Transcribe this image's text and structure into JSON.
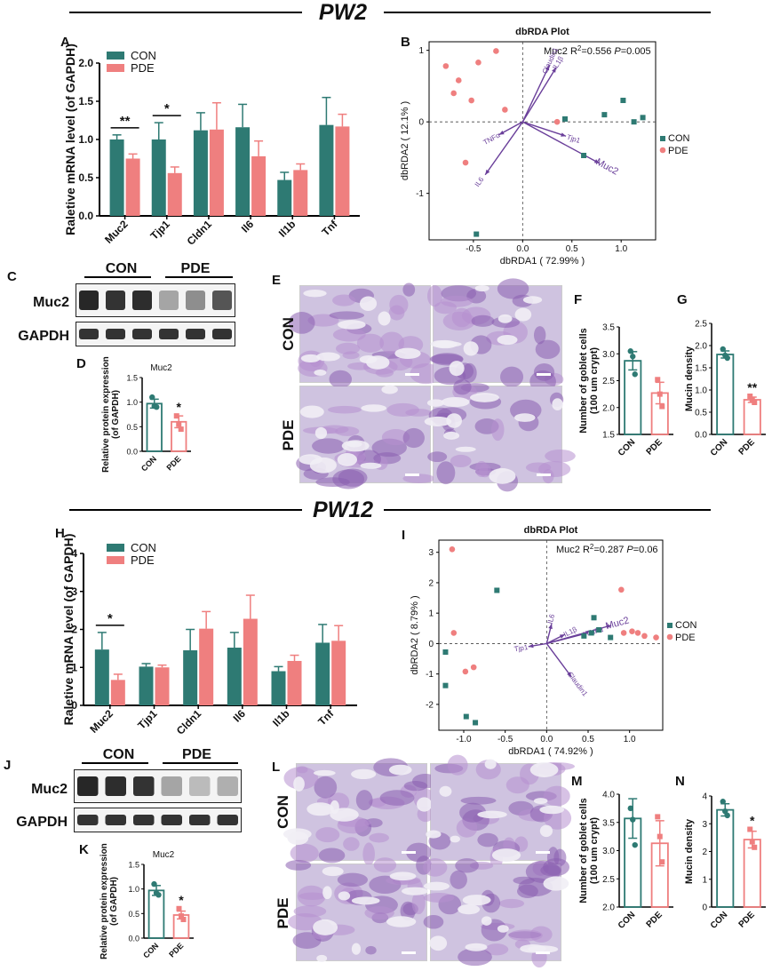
{
  "colors": {
    "con": "#2e7a73",
    "pde": "#ef7f7f",
    "vector": "#6a3f9a",
    "text": "#111111"
  },
  "sections": {
    "top": "PW2",
    "bottom": "PW12"
  },
  "panel_letters": [
    "A",
    "B",
    "C",
    "D",
    "E",
    "F",
    "G",
    "H",
    "I",
    "J",
    "K",
    "L",
    "M",
    "N"
  ],
  "group_labels": {
    "con": "CON",
    "pde": "PDE"
  },
  "blot_labels": {
    "muc2": "Muc2",
    "gapdh": "GAPDH"
  },
  "histology_row_labels": [
    "CON",
    "PDE"
  ],
  "chart_data": [
    {
      "id": "A",
      "type": "bar",
      "ylabel": "Raletive mRNA level (of GAPDH)",
      "categories": [
        "Muc2",
        "Tjp1",
        "Cldn1",
        "Il6",
        "Il1b",
        "Tnf"
      ],
      "ylim": [
        0,
        2.0
      ],
      "yticks": [
        "0.0",
        "0.5",
        "1.0",
        "1.5",
        "2.0"
      ],
      "series": [
        {
          "name": "CON",
          "values": [
            1.0,
            1.0,
            1.12,
            1.16,
            0.47,
            1.19
          ],
          "errors": [
            0.06,
            0.22,
            0.23,
            0.3,
            0.1,
            0.36
          ]
        },
        {
          "name": "PDE",
          "values": [
            0.75,
            0.56,
            1.13,
            0.78,
            0.6,
            1.17
          ],
          "errors": [
            0.06,
            0.08,
            0.35,
            0.2,
            0.08,
            0.16
          ]
        }
      ],
      "annotations": [
        {
          "category": "Muc2",
          "text": "**"
        },
        {
          "category": "Tjp1",
          "text": "*"
        }
      ]
    },
    {
      "id": "B",
      "type": "scatter",
      "title": "dbRDA Plot",
      "xlabel": "dbRDA1 ( 72.99% )",
      "ylabel": "dbRDA2 ( 12.1% )",
      "xlim": [
        -0.95,
        1.35
      ],
      "ylim": [
        -1.65,
        1.12
      ],
      "xticks": [
        "-0.5",
        "0.0",
        "0.5",
        "1.0"
      ],
      "xtick_values": [
        -0.5,
        0,
        0.5,
        1.0
      ],
      "yticks": [
        "1",
        "0",
        "-1"
      ],
      "ytick_values": [
        1,
        0,
        -1
      ],
      "stat": {
        "prefix": "Muc2 R",
        "sup": "2",
        "mid": "=0.556 ",
        "p": "P",
        "tail": "=0.005"
      },
      "series": [
        {
          "name": "CON",
          "x": [
            0.43,
            0.62,
            0.83,
            1.02,
            1.13,
            1.22,
            -0.47
          ],
          "y": [
            0.04,
            -0.47,
            0.1,
            0.3,
            0.0,
            0.06,
            -1.57
          ]
        },
        {
          "name": "PDE",
          "x": [
            -0.78,
            -0.65,
            -0.7,
            -0.52,
            -0.45,
            -0.27,
            -0.18,
            0.35,
            -0.58
          ],
          "y": [
            0.78,
            0.58,
            0.4,
            0.3,
            0.83,
            0.99,
            0.17,
            0.0,
            -0.57
          ]
        }
      ],
      "vectors": [
        {
          "label": "Muc2",
          "x": 0.78,
          "y": -0.58
        },
        {
          "label": "Claudin1",
          "x": 0.27,
          "y": 0.79
        },
        {
          "label": "IL1β",
          "x": 0.34,
          "y": 0.76
        },
        {
          "label": "Tjp1",
          "x": 0.44,
          "y": -0.2
        },
        {
          "label": "TNFα",
          "x": -0.24,
          "y": -0.18
        },
        {
          "label": "IL6",
          "x": -0.38,
          "y": -0.74
        }
      ]
    },
    {
      "id": "D",
      "type": "bar",
      "title": "Muc2",
      "ylabel": "Relative protein expression (of GAPDH)",
      "categories": [
        "CON",
        "PDE"
      ],
      "ylim": [
        0,
        1.5
      ],
      "yticks": [
        "0.0",
        "0.5",
        "1.0",
        "1.5"
      ],
      "values": [
        0.97,
        0.6
      ],
      "errors": [
        0.09,
        0.12
      ],
      "points": [
        [
          1.1,
          0.92,
          0.9
        ],
        [
          0.72,
          0.55,
          0.45
        ]
      ],
      "annotations": [
        {
          "category": "PDE",
          "text": "*"
        }
      ]
    },
    {
      "id": "F",
      "type": "bar",
      "ylabel": "Number of goblet cells (100 um crypt)",
      "categories": [
        "CON",
        "PDE"
      ],
      "ylim": [
        1.5,
        3.5
      ],
      "yticks": [
        "1.5",
        "2.0",
        "2.5",
        "3.0",
        "3.5"
      ],
      "values": [
        2.87,
        2.27
      ],
      "errors": [
        0.17,
        0.2
      ],
      "points": [
        [
          3.05,
          2.95,
          2.62
        ],
        [
          2.52,
          2.25,
          2.02
        ]
      ]
    },
    {
      "id": "G",
      "type": "bar",
      "ylabel": "Mucin density",
      "categories": [
        "CON",
        "PDE"
      ],
      "ylim": [
        0,
        2.5
      ],
      "yticks": [
        "0.0",
        "0.5",
        "1.0",
        "1.5",
        "2.0",
        "2.5"
      ],
      "values": [
        1.8,
        0.78
      ],
      "errors": [
        0.08,
        0.06
      ],
      "points": [
        [
          1.92,
          1.78,
          1.72
        ],
        [
          0.86,
          0.77,
          0.72
        ]
      ],
      "annotations": [
        {
          "category": "PDE",
          "text": "**"
        }
      ]
    },
    {
      "id": "H",
      "type": "bar",
      "ylabel": "Raletive mRNA level (of GAPDH)",
      "categories": [
        "Muc2",
        "Tjp1",
        "Cldn1",
        "Il6",
        "Il1b",
        "Tnf"
      ],
      "ylim": [
        0,
        4
      ],
      "yticks": [
        "0",
        "1",
        "2",
        "3",
        "4"
      ],
      "series": [
        {
          "name": "CON",
          "values": [
            1.47,
            1.02,
            1.45,
            1.52,
            0.9,
            1.65
          ],
          "errors": [
            0.45,
            0.08,
            0.55,
            0.4,
            0.12,
            0.48
          ]
        },
        {
          "name": "PDE",
          "values": [
            0.67,
            1.0,
            2.02,
            2.28,
            1.17,
            1.7
          ],
          "errors": [
            0.15,
            0.06,
            0.45,
            0.62,
            0.15,
            0.4
          ]
        }
      ],
      "annotations": [
        {
          "category": "Muc2",
          "text": "*"
        }
      ]
    },
    {
      "id": "I",
      "type": "scatter",
      "title": "dbRDA Plot",
      "xlabel": "dbRDA1 ( 74.92% )",
      "ylabel": "dbRDA2 ( 8.79% )",
      "xlim": [
        -1.3,
        1.4
      ],
      "ylim": [
        -2.85,
        3.4
      ],
      "xticks": [
        "-1.0",
        "-0.5",
        "0.0",
        "0.5",
        "1.0"
      ],
      "xtick_values": [
        -1.0,
        -0.5,
        0,
        0.5,
        1.0
      ],
      "yticks": [
        "3",
        "2",
        "1",
        "0",
        "-1",
        "-2"
      ],
      "ytick_values": [
        3,
        2,
        1,
        0,
        -1,
        -2
      ],
      "stat": {
        "prefix": "Muc2 R",
        "sup": "2",
        "mid": "=0.287 ",
        "p": "P",
        "tail": "=0.06"
      },
      "series": [
        {
          "name": "CON",
          "x": [
            -0.6,
            -1.22,
            -1.22,
            -0.97,
            -0.86,
            0.57,
            0.45,
            0.54,
            0.63,
            0.77
          ],
          "y": [
            1.75,
            -0.28,
            -1.38,
            -2.4,
            -2.6,
            0.85,
            0.25,
            0.35,
            0.45,
            0.2
          ]
        },
        {
          "name": "PDE",
          "x": [
            -1.14,
            -1.12,
            -0.88,
            -0.98,
            0.9,
            0.93,
            1.03,
            1.1,
            1.18,
            1.32
          ],
          "y": [
            3.1,
            0.35,
            -0.78,
            -0.92,
            1.77,
            0.35,
            0.4,
            0.35,
            0.25,
            0.2
          ]
        }
      ],
      "vectors": [
        {
          "label": "Muc2",
          "x": 0.78,
          "y": 0.6
        },
        {
          "label": "Claudin1",
          "x": 0.3,
          "y": -1.1
        },
        {
          "label": "IL1β",
          "x": 0.22,
          "y": 0.3
        },
        {
          "label": "TNFα",
          "x": 0.5,
          "y": 0.35
        },
        {
          "label": "IL6",
          "x": 0.06,
          "y": 0.65
        },
        {
          "label": "Tjp1",
          "x": -0.22,
          "y": -0.1
        }
      ]
    },
    {
      "id": "K",
      "type": "bar",
      "title": "Muc2",
      "ylabel": "Relative protein expression (of GAPDH)",
      "categories": [
        "CON",
        "PDE"
      ],
      "ylim": [
        0,
        1.5
      ],
      "yticks": [
        "0.0",
        "0.5",
        "1.0",
        "1.5"
      ],
      "values": [
        0.97,
        0.47
      ],
      "errors": [
        0.1,
        0.08
      ],
      "points": [
        [
          1.1,
          0.92,
          0.88
        ],
        [
          0.6,
          0.45,
          0.38
        ]
      ],
      "annotations": [
        {
          "category": "PDE",
          "text": "*"
        }
      ]
    },
    {
      "id": "M",
      "type": "bar",
      "ylabel": "Number of goblet cells (100 um crypt)",
      "categories": [
        "CON",
        "PDE"
      ],
      "ylim": [
        2.0,
        4.0
      ],
      "yticks": [
        "2.0",
        "2.5",
        "3.0",
        "3.5",
        "4.0"
      ],
      "values": [
        3.57,
        3.13
      ],
      "errors": [
        0.35,
        0.4
      ],
      "points": [
        [
          3.75,
          3.55,
          3.1
        ],
        [
          3.6,
          3.25,
          2.8
        ]
      ]
    },
    {
      "id": "N",
      "type": "bar",
      "ylabel": "Mucin density",
      "categories": [
        "CON",
        "PDE"
      ],
      "ylim": [
        0,
        4
      ],
      "yticks": [
        "0",
        "1",
        "2",
        "3",
        "4"
      ],
      "values": [
        3.5,
        2.43
      ],
      "errors": [
        0.22,
        0.3
      ],
      "points": [
        [
          3.8,
          3.45,
          3.3
        ],
        [
          2.8,
          2.35,
          2.15
        ]
      ],
      "annotations": [
        {
          "category": "PDE",
          "text": "*"
        }
      ]
    }
  ]
}
